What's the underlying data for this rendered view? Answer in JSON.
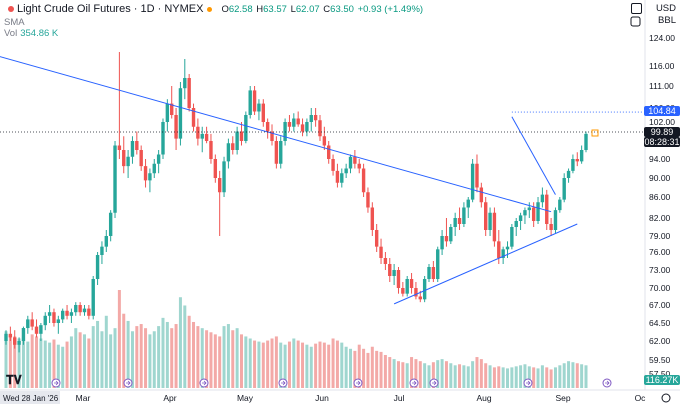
{
  "header": {
    "symbol_title": "Light Crude Oil Futures · 1D · NYMEX",
    "open_label": "O",
    "open": "62.58",
    "high_label": "H",
    "high": "63.57",
    "low_label": "L",
    "low": "62.07",
    "close_label": "C",
    "close": "63.50",
    "change": "+0.93 (+1.49%)",
    "sma_label": "SMA",
    "vol_label": "Vol",
    "vol_value": "354.86 K",
    "currency": "USD",
    "unit": "BBL"
  },
  "price_tags": {
    "alert_price": "104.84",
    "last_price": "99.89",
    "countdown": "08:28:31",
    "volume": "116.27K"
  },
  "date_label": "Wed 28 Jan '26",
  "colors": {
    "up": "#26a69a",
    "down": "#ef5350",
    "vol_up": "#9fd6cf",
    "vol_down": "#f3a9a7",
    "trendline": "#2962ff",
    "last_price_tag": "#131722",
    "alert_tag": "#2962ff"
  },
  "icons": [
    "lock-icon",
    "eye-icon",
    "settings-icon",
    "tradingview-logo",
    "flag-icon"
  ],
  "chart_data": {
    "type": "candlestick",
    "y_ticks": [
      "124.00",
      "116.00",
      "111.00",
      "106.00",
      "102.00",
      "98.00",
      "94.00",
      "90.00",
      "86.00",
      "82.00",
      "79.00",
      "76.00",
      "73.00",
      "70.00",
      "67.00",
      "64.50",
      "62.00",
      "59.50",
      "57.50"
    ],
    "x_ticks": [
      "Mar",
      "Apr",
      "May",
      "Jun",
      "Jul",
      "Aug",
      "Sep",
      "Oc"
    ],
    "ylim": [
      55.5,
      126
    ],
    "candles": [
      [
        62.0,
        63.5,
        61.5,
        63.0
      ],
      [
        63.0,
        64.0,
        62.0,
        62.5
      ],
      [
        62.5,
        63.5,
        61.0,
        61.5
      ],
      [
        61.5,
        62.5,
        60.5,
        62.0
      ],
      [
        62.0,
        64.0,
        61.5,
        63.8
      ],
      [
        63.8,
        65.5,
        63.0,
        65.0
      ],
      [
        65.0,
        66.0,
        63.5,
        64.0
      ],
      [
        64.0,
        65.0,
        62.5,
        63.0
      ],
      [
        63.0,
        64.5,
        62.0,
        64.2
      ],
      [
        64.2,
        66.0,
        63.5,
        65.5
      ],
      [
        65.5,
        67.0,
        64.5,
        66.0
      ],
      [
        66.0,
        66.5,
        64.0,
        64.5
      ],
      [
        64.5,
        65.5,
        63.0,
        65.0
      ],
      [
        65.0,
        66.5,
        64.5,
        66.2
      ],
      [
        66.2,
        67.0,
        65.0,
        65.5
      ],
      [
        65.5,
        66.5,
        64.5,
        66.0
      ],
      [
        66.0,
        67.5,
        65.5,
        67.0
      ],
      [
        67.0,
        67.5,
        65.5,
        66.0
      ],
      [
        66.0,
        67.0,
        65.5,
        66.5
      ],
      [
        66.5,
        67.0,
        65.0,
        65.5
      ],
      [
        65.5,
        72.0,
        65.0,
        71.5
      ],
      [
        71.5,
        76.0,
        70.5,
        75.5
      ],
      [
        75.5,
        78.0,
        74.0,
        77.0
      ],
      [
        77.0,
        80.0,
        76.0,
        79.0
      ],
      [
        79.0,
        83.5,
        78.0,
        83.0
      ],
      [
        83.0,
        98.0,
        82.0,
        97.0
      ],
      [
        97.0,
        120.0,
        94.0,
        96.0
      ],
      [
        96.0,
        99.0,
        91.0,
        92.5
      ],
      [
        92.5,
        96.0,
        90.0,
        94.5
      ],
      [
        94.5,
        99.0,
        93.0,
        98.0
      ],
      [
        98.0,
        100.0,
        95.0,
        96.0
      ],
      [
        96.0,
        97.0,
        91.5,
        92.5
      ],
      [
        92.5,
        94.0,
        88.0,
        89.5
      ],
      [
        89.5,
        92.0,
        87.0,
        91.0
      ],
      [
        91.0,
        94.0,
        90.0,
        93.0
      ],
      [
        93.0,
        96.0,
        91.0,
        95.0
      ],
      [
        95.0,
        103.0,
        94.0,
        102.0
      ],
      [
        102.0,
        108.0,
        100.0,
        107.0
      ],
      [
        107.0,
        111.0,
        103.0,
        104.0
      ],
      [
        104.0,
        106.0,
        96.0,
        98.5
      ],
      [
        98.5,
        112.0,
        97.0,
        110.5
      ],
      [
        110.5,
        118.0,
        108.0,
        113.0
      ],
      [
        113.0,
        114.0,
        105.0,
        106.0
      ],
      [
        106.0,
        107.0,
        100.0,
        101.0
      ],
      [
        101.0,
        103.0,
        97.0,
        98.5
      ],
      [
        98.5,
        101.0,
        95.5,
        99.5
      ],
      [
        99.5,
        101.0,
        97.5,
        98.0
      ],
      [
        98.0,
        99.5,
        93.0,
        94.0
      ],
      [
        94.0,
        95.0,
        89.0,
        90.0
      ],
      [
        90.0,
        91.5,
        79.0,
        87.0
      ],
      [
        87.0,
        94.5,
        86.0,
        93.5
      ],
      [
        93.5,
        98.5,
        92.0,
        97.5
      ],
      [
        97.5,
        99.0,
        95.0,
        96.0
      ],
      [
        96.0,
        101.0,
        95.0,
        100.0
      ],
      [
        100.0,
        102.0,
        97.0,
        98.0
      ],
      [
        98.0,
        105.0,
        97.5,
        104.0
      ],
      [
        104.0,
        111.0,
        103.0,
        110.0
      ],
      [
        110.0,
        111.0,
        104.0,
        105.0
      ],
      [
        105.0,
        108.0,
        102.5,
        107.0
      ],
      [
        107.0,
        108.0,
        101.0,
        102.0
      ],
      [
        102.0,
        103.0,
        98.5,
        100.0
      ],
      [
        100.0,
        101.5,
        97.0,
        98.0
      ],
      [
        98.0,
        99.0,
        92.0,
        93.0
      ],
      [
        93.0,
        99.0,
        92.0,
        98.0
      ],
      [
        98.0,
        103.0,
        97.0,
        102.0
      ],
      [
        102.0,
        104.0,
        100.0,
        101.0
      ],
      [
        101.0,
        104.5,
        100.0,
        103.0
      ],
      [
        103.0,
        105.0,
        101.0,
        101.5
      ],
      [
        101.5,
        103.0,
        99.0,
        100.0
      ],
      [
        100.0,
        103.0,
        99.0,
        102.0
      ],
      [
        102.0,
        106.0,
        100.0,
        104.0
      ],
      [
        104.0,
        106.0,
        101.0,
        102.5
      ],
      [
        102.5,
        104.0,
        98.0,
        99.0
      ],
      [
        99.0,
        101.0,
        96.0,
        97.0
      ],
      [
        97.0,
        98.0,
        93.0,
        94.0
      ],
      [
        94.0,
        95.0,
        90.5,
        91.5
      ],
      [
        91.5,
        93.0,
        88.0,
        89.0
      ],
      [
        89.0,
        92.0,
        88.0,
        91.0
      ],
      [
        91.0,
        93.0,
        90.0,
        92.0
      ],
      [
        92.0,
        95.0,
        91.0,
        94.5
      ],
      [
        94.5,
        96.0,
        92.0,
        93.0
      ],
      [
        93.0,
        94.0,
        91.0,
        92.0
      ],
      [
        92.0,
        93.0,
        86.0,
        87.0
      ],
      [
        87.0,
        88.0,
        83.0,
        84.0
      ],
      [
        84.0,
        85.0,
        79.0,
        80.0
      ],
      [
        80.0,
        81.0,
        76.0,
        77.0
      ],
      [
        77.0,
        78.5,
        74.0,
        75.0
      ],
      [
        75.0,
        76.0,
        73.0,
        74.0
      ],
      [
        74.0,
        75.0,
        71.0,
        72.0
      ],
      [
        72.0,
        74.0,
        70.5,
        73.0
      ],
      [
        73.0,
        73.5,
        69.0,
        70.0
      ],
      [
        70.0,
        71.0,
        68.5,
        69.0
      ],
      [
        69.0,
        72.0,
        68.5,
        71.5
      ],
      [
        71.5,
        72.5,
        69.0,
        70.0
      ],
      [
        70.0,
        71.0,
        68.0,
        68.5
      ],
      [
        68.5,
        69.5,
        67.5,
        68.0
      ],
      [
        68.0,
        72.0,
        67.5,
        71.5
      ],
      [
        71.5,
        74.0,
        71.0,
        73.5
      ],
      [
        73.5,
        74.5,
        71.0,
        71.5
      ],
      [
        71.5,
        77.0,
        71.0,
        76.5
      ],
      [
        76.5,
        80.0,
        75.5,
        79.0
      ],
      [
        79.0,
        82.0,
        77.0,
        78.0
      ],
      [
        78.0,
        81.0,
        77.5,
        80.5
      ],
      [
        80.5,
        83.0,
        79.0,
        82.0
      ],
      [
        82.0,
        84.0,
        80.0,
        81.0
      ],
      [
        81.0,
        85.0,
        80.5,
        84.0
      ],
      [
        84.0,
        86.0,
        82.0,
        85.5
      ],
      [
        85.5,
        94.0,
        85.0,
        93.0
      ],
      [
        93.0,
        95.0,
        87.0,
        88.0
      ],
      [
        88.0,
        89.0,
        84.0,
        85.0
      ],
      [
        85.0,
        86.0,
        79.0,
        80.0
      ],
      [
        80.0,
        84.0,
        79.0,
        83.0
      ],
      [
        83.0,
        84.0,
        77.0,
        78.0
      ],
      [
        78.0,
        80.0,
        74.0,
        75.0
      ],
      [
        75.0,
        77.0,
        74.0,
        76.5
      ],
      [
        76.5,
        78.0,
        75.0,
        77.0
      ],
      [
        77.0,
        81.0,
        76.5,
        80.5
      ],
      [
        80.5,
        82.0,
        79.0,
        81.5
      ],
      [
        81.5,
        83.0,
        80.0,
        82.5
      ],
      [
        82.5,
        84.0,
        81.0,
        83.5
      ],
      [
        83.5,
        85.0,
        82.0,
        84.0
      ],
      [
        84.0,
        85.0,
        80.5,
        81.5
      ],
      [
        81.5,
        86.0,
        81.0,
        85.0
      ],
      [
        85.0,
        88.0,
        84.0,
        86.5
      ],
      [
        86.5,
        87.5,
        80.0,
        81.0
      ],
      [
        81.0,
        82.0,
        79.0,
        80.0
      ],
      [
        80.0,
        84.0,
        79.5,
        83.5
      ],
      [
        83.5,
        86.0,
        83.0,
        85.5
      ],
      [
        85.5,
        91.0,
        85.0,
        90.0
      ],
      [
        90.0,
        92.0,
        89.0,
        91.5
      ],
      [
        91.5,
        95.0,
        91.0,
        94.0
      ],
      [
        94.0,
        95.5,
        92.5,
        93.5
      ],
      [
        93.5,
        97.0,
        93.0,
        96.0
      ],
      [
        96.0,
        100.0,
        95.5,
        99.5
      ]
    ],
    "volume": [
      55,
      52,
      50,
      48,
      50,
      45,
      52,
      50,
      48,
      46,
      44,
      47,
      42,
      40,
      45,
      50,
      58,
      54,
      52,
      48,
      60,
      65,
      55,
      70,
      52,
      58,
      95,
      72,
      65,
      55,
      60,
      62,
      58,
      52,
      55,
      60,
      68,
      64,
      58,
      62,
      88,
      80,
      70,
      64,
      60,
      58,
      56,
      54,
      52,
      50,
      60,
      62,
      56,
      58,
      52,
      50,
      48,
      46,
      45,
      44,
      46,
      48,
      50,
      44,
      42,
      45,
      48,
      46,
      44,
      42,
      40,
      43,
      45,
      44,
      42,
      48,
      46,
      44,
      40,
      38,
      36,
      42,
      38,
      34,
      40,
      36,
      35,
      32,
      30,
      28,
      26,
      25,
      24,
      30,
      28,
      26,
      24,
      22,
      25,
      27,
      28,
      26,
      24,
      22,
      23,
      22,
      21,
      26,
      30,
      28,
      24,
      22,
      20,
      21,
      20,
      19,
      20,
      21,
      22,
      23,
      21,
      20,
      19,
      22,
      20,
      18,
      20,
      22,
      24,
      26,
      25,
      24,
      23,
      22
    ],
    "trendlines": [
      {
        "name": "upper-resistance",
        "x1": -18,
        "y1": 124.5,
        "x2": 125,
        "y2": 83.2
      },
      {
        "name": "lower-support",
        "x1": 89,
        "y1": 67.2,
        "x2": 131,
        "y2": 81.0
      },
      {
        "name": "steep-line",
        "x1": 116,
        "y1": 103.5,
        "x2": 126,
        "y2": 86.5
      }
    ],
    "alert_level": 104.84,
    "last_level": 99.89
  }
}
